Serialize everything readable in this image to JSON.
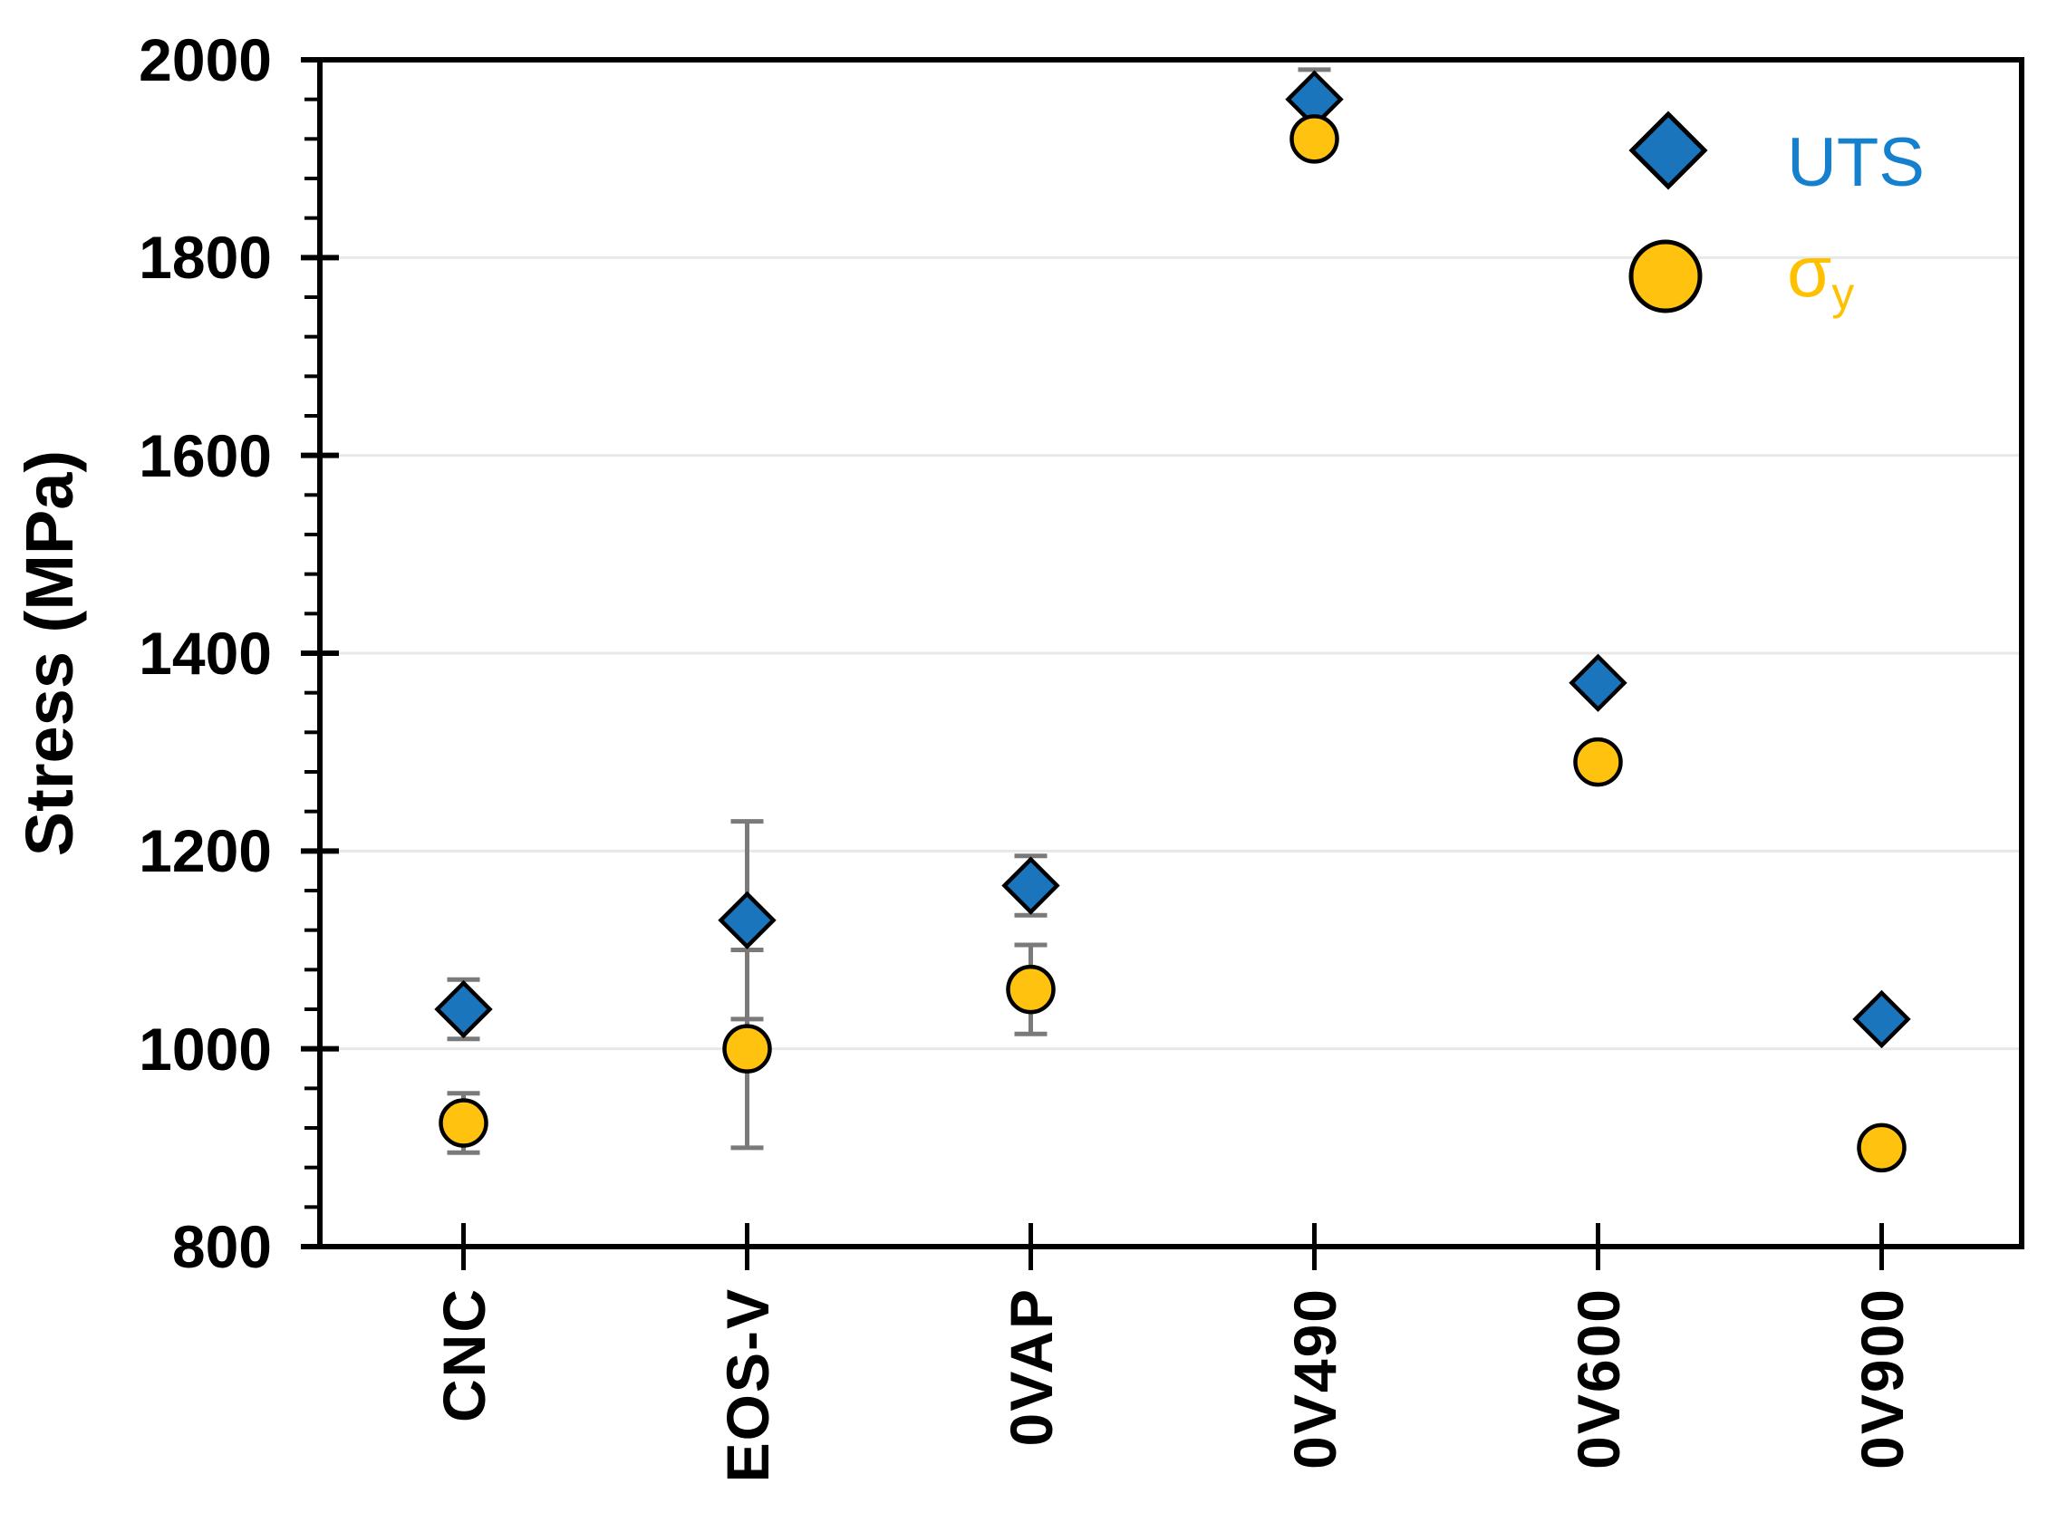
{
  "chart_data": {
    "type": "scatter",
    "title": "",
    "ylabel": "Stress (MPa)",
    "xlabel": "",
    "categories": [
      "CNC",
      "EOS-V",
      "0VAP",
      "0V490",
      "0V600",
      "0V900"
    ],
    "series": [
      {
        "name": "UTS",
        "marker": "diamond",
        "color": "#1B75BC",
        "values": [
          1040,
          1130,
          1165,
          1960,
          1370,
          1030
        ],
        "errors": [
          30,
          100,
          30,
          30,
          null,
          null
        ]
      },
      {
        "name": "σy",
        "marker": "circle",
        "color": "#FFC20E",
        "values": [
          925,
          1000,
          1060,
          1920,
          1290,
          900
        ],
        "errors": [
          30,
          100,
          45,
          null,
          null,
          null
        ]
      }
    ],
    "ylim": [
      800,
      2000
    ],
    "ytick_step": 200,
    "yminor_step": 40,
    "grid": "horizontal-major",
    "legend_position": "top-right-inside",
    "colors": {
      "error_bar": "#7A7A7A",
      "gridline": "#E8E8E8",
      "axis": "#000000",
      "uts_label_text": "#1581CE",
      "sigma_label_text": "#FFC000"
    }
  },
  "legend": {
    "uts": "UTS",
    "sigma_base": "σ",
    "sigma_sub": "y"
  }
}
